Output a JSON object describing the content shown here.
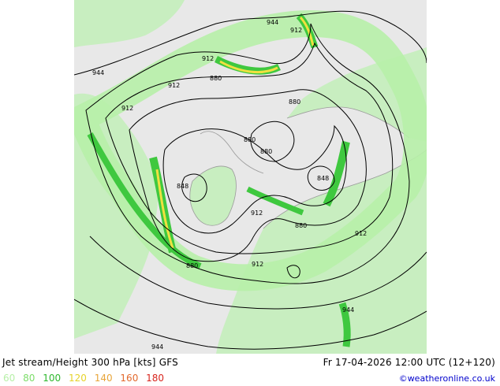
{
  "map": {
    "contour_labels": [
      {
        "id": "l944-top",
        "text": "944"
      },
      {
        "id": "l912-top",
        "text": "912"
      },
      {
        "id": "l944-left",
        "text": "944"
      },
      {
        "id": "l912-a",
        "text": "912"
      },
      {
        "id": "l912-b",
        "text": "912"
      },
      {
        "id": "l880-a",
        "text": "880"
      },
      {
        "id": "l880-b",
        "text": "880"
      },
      {
        "id": "l912-c",
        "text": "912"
      },
      {
        "id": "l880-c",
        "text": "880"
      },
      {
        "id": "l880-d",
        "text": "880"
      },
      {
        "id": "l848-a",
        "text": "848"
      },
      {
        "id": "l848-b",
        "text": "848"
      },
      {
        "id": "l912-d",
        "text": "912"
      },
      {
        "id": "l880-e",
        "text": "880"
      },
      {
        "id": "l912-e",
        "text": "912"
      },
      {
        "id": "l880-f",
        "text": "880"
      },
      {
        "id": "l912-f",
        "text": "912"
      },
      {
        "id": "l944-br",
        "text": "944"
      },
      {
        "id": "l944-bottom",
        "text": "944"
      }
    ],
    "colors": {
      "jet_light": "#b7f0a8",
      "jet_mid": "#3fc83f",
      "jet_yellow": "#f0e040",
      "land": "#c8eec0",
      "sea": "#e8e8e8"
    }
  },
  "footer": {
    "title": "Jet stream/Height 300 hPa [kts] GFS",
    "datetime": "Fr 17-04-2026 12:00 UTC (12+120)",
    "credit": "©weatheronline.co.uk",
    "legend": [
      {
        "label": "60",
        "color": "#b7f0a8"
      },
      {
        "label": "80",
        "color": "#7ddd6a"
      },
      {
        "label": "100",
        "color": "#2eb82e"
      },
      {
        "label": "120",
        "color": "#e6d32a"
      },
      {
        "label": "140",
        "color": "#e8a53a"
      },
      {
        "label": "160",
        "color": "#e36a2e"
      },
      {
        "label": "180",
        "color": "#d8261f"
      }
    ]
  }
}
